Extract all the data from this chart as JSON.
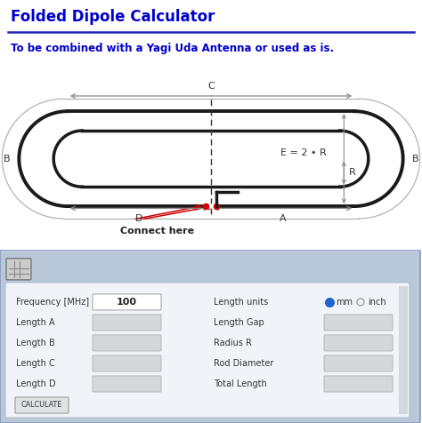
{
  "title": "Folded Dipole Calculator",
  "subtitle": "To be combined with a Yagi Uda Antenna or used as is.",
  "title_color": "#0000CC",
  "subtitle_color": "#0000CC",
  "bg_color": "#ffffff",
  "panel_bg": "#b8c8d8",
  "panel_inner_bg": "#f2f5f8",
  "input_bg": "#d8dadc",
  "freq_value": "100",
  "left_labels": [
    "Frequency [MHz]",
    "Length A",
    "Length B",
    "Length C",
    "Length D"
  ],
  "right_labels": [
    "Length units",
    "Length Gap",
    "Radius R",
    "Rod Diameter",
    "Total Length"
  ],
  "calc_btn": "CALCULATE",
  "connect_text": "Connect here",
  "E_label": "E = 2 • R",
  "labels": [
    "C",
    "B",
    "B",
    "D",
    "A",
    "R"
  ]
}
